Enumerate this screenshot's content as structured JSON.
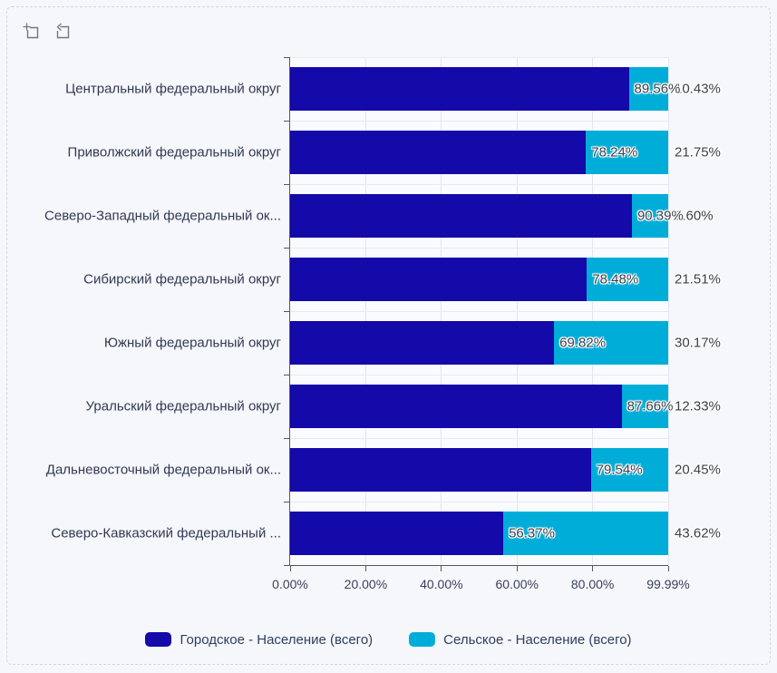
{
  "toolbar": {
    "icons": [
      {
        "name": "box-zoom-select-icon"
      },
      {
        "name": "zoom-restore-icon"
      }
    ]
  },
  "chart_data": {
    "type": "bar",
    "orientation": "horizontal",
    "stacked": true,
    "title": "",
    "categories": [
      "Центральный федеральный округ",
      "Приволжский федеральный округ",
      "Северо-Западный федеральный ок...",
      "Сибирский федеральный округ",
      "Южный федеральный округ",
      "Уральский федеральный округ",
      "Дальневосточный федеральный ок...",
      "Северо-Кавказский федеральный ..."
    ],
    "series": [
      {
        "name": "Городское - Население (всего)",
        "color": "#1409A9",
        "values": [
          89.56,
          78.24,
          90.39,
          78.48,
          69.82,
          87.66,
          79.54,
          56.37
        ],
        "data_labels": [
          "89.56%",
          "78.24%",
          "90.39%",
          "78.48%",
          "69.82%",
          "87.66%",
          "79.54%",
          "56.37%"
        ]
      },
      {
        "name": "Сельское - Население (всего)",
        "color": "#00ADD8",
        "values": [
          10.43,
          21.75,
          9.6,
          21.51,
          30.17,
          12.33,
          20.45,
          43.62
        ],
        "data_labels": [
          "10.43%",
          "21.75%",
          "9.60%",
          "21.51%",
          "30.17%",
          "12.33%",
          "20.45%",
          "43.62%"
        ]
      }
    ],
    "x_axis": {
      "min": 0,
      "max": 99.99,
      "tick_values": [
        0,
        20,
        40,
        60,
        80,
        99.99
      ],
      "tick_labels": [
        "0.00%",
        "20.00%",
        "40.00%",
        "60.00%",
        "80.00%",
        "99.99%"
      ]
    },
    "legend": {
      "position": "bottom",
      "items": [
        "Городское - Население (всего)",
        "Сельское - Население (всего)"
      ]
    },
    "grid": true
  }
}
